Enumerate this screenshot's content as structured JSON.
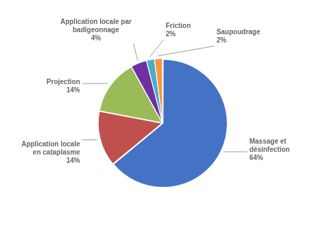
{
  "chart_data": {
    "type": "pie",
    "categories": [
      "Massage et\ndésinfection",
      "Application locale\nen cataplasme",
      "Projection",
      "Application locale par\nbadigeonnage",
      "Friction",
      "Saupoudrage"
    ],
    "values": [
      64,
      14,
      14,
      4,
      2,
      2
    ],
    "value_labels": [
      "64%",
      "14%",
      "14%",
      "4%",
      "2%",
      "2%"
    ],
    "data_labels": true,
    "colors": [
      "#4472C4",
      "#C0504D",
      "#9BBB59",
      "#7030A0",
      "#4BACC6",
      "#F79646"
    ]
  }
}
